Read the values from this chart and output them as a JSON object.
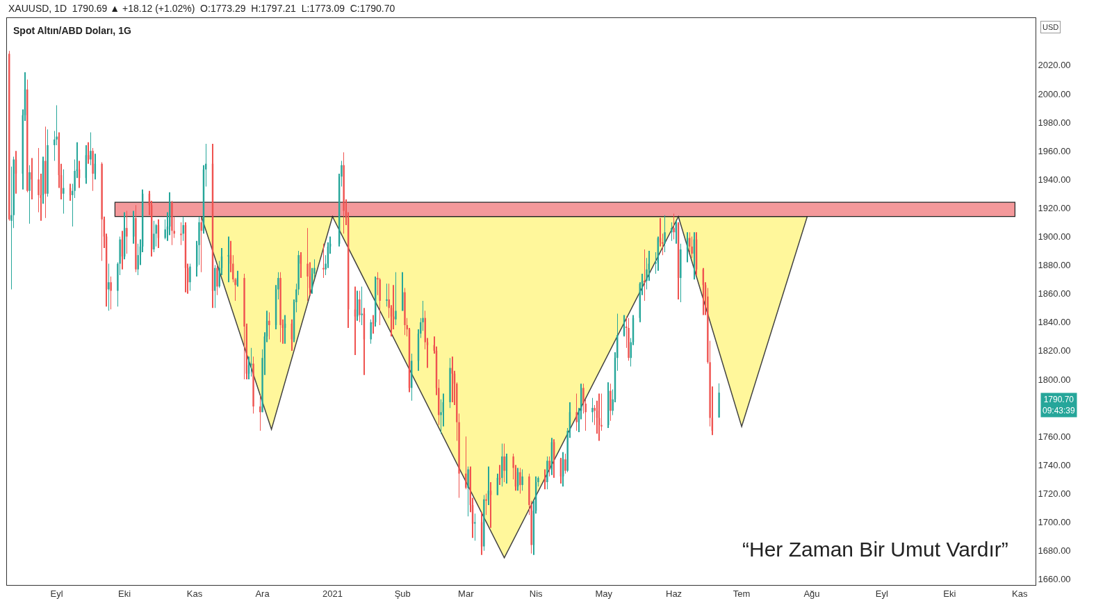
{
  "chart_data": {
    "type": "candlestick",
    "title": "Spot Altın/ABD Doları, 1G",
    "subtitle": "XAUUSD, 1D  1790.69 ▲ +18.12 (+1.02%)  O:1773.29  H:1797.21  L:1773.09  C:1790.70",
    "annotations": [
      "“Her Zaman Bir Umut Vardır”",
      "USD",
      "1790.70\n09:43:39"
    ],
    "xlim": [
      "2020-08-10",
      "2021-11-08"
    ],
    "xticks": [
      {
        "value": "2020-09-01",
        "label": "Eyl"
      },
      {
        "value": "2020-10-01",
        "label": "Eki"
      },
      {
        "value": "2020-11-01",
        "label": "Kas"
      },
      {
        "value": "2020-12-01",
        "label": "Ara"
      },
      {
        "value": "2021-01-01",
        "label": "2021"
      },
      {
        "value": "2021-02-01",
        "label": "Şub"
      },
      {
        "value": "2021-03-01",
        "label": "Mar"
      },
      {
        "value": "2021-04-01",
        "label": "Nis"
      },
      {
        "value": "2021-05-01",
        "label": "May"
      },
      {
        "value": "2021-06-01",
        "label": "Haz"
      },
      {
        "value": "2021-07-01",
        "label": "Tem"
      },
      {
        "value": "2021-08-01",
        "label": "Ağu"
      },
      {
        "value": "2021-09-01",
        "label": "Eyl"
      },
      {
        "value": "2021-10-01",
        "label": "Eki"
      },
      {
        "value": "2021-11-01",
        "label": "Kas"
      }
    ],
    "ylim": [
      1656,
      2053
    ],
    "yticks": [
      {
        "value": 1660,
        "label": "1660.00"
      },
      {
        "value": 1680,
        "label": "1680.00"
      },
      {
        "value": 1700,
        "label": "1700.00"
      },
      {
        "value": 1720,
        "label": "1720.00"
      },
      {
        "value": 1740,
        "label": "1740.00"
      },
      {
        "value": 1760,
        "label": "1760.00"
      },
      {
        "value": 1800,
        "label": "1800.00"
      },
      {
        "value": 1820,
        "label": "1820.00"
      },
      {
        "value": 1840,
        "label": "1840.00"
      },
      {
        "value": 1860,
        "label": "1860.00"
      },
      {
        "value": 1880,
        "label": "1880.00"
      },
      {
        "value": 1900,
        "label": "1900.00"
      },
      {
        "value": 1920,
        "label": "1920.00"
      },
      {
        "value": 1940,
        "label": "1940.00"
      },
      {
        "value": 1960,
        "label": "1960.00"
      },
      {
        "value": 1980,
        "label": "1980.00"
      },
      {
        "value": 2000,
        "label": "2000.00"
      },
      {
        "value": 2020,
        "label": "2020.00"
      }
    ],
    "bands": [
      {
        "axis": "y",
        "from": 1914,
        "to": 1924,
        "color": "#f4999b"
      }
    ],
    "series": [
      {
        "type": "area",
        "color": "#fff68a",
        "x": [
          "2020-11-04",
          "2020-12-05",
          "2021-01-01",
          "2021-03-18",
          "2021-06-03",
          "2021-07-01",
          "2021-07-30"
        ],
        "values": [
          1914,
          1765,
          1914,
          1675,
          1914,
          1767,
          1914
        ]
      },
      {
        "colors": [
          "#ef5350",
          "#26a69a",
          "#26a69a",
          "#ef5350",
          "#26a69a",
          "#26a69a",
          "#ef5350",
          "#26a69a",
          "#ef5350",
          "#ef5350",
          "#ef5350",
          "#26a69a",
          "#ef5350",
          "#26a69a",
          "#26a69a",
          "#26a69a",
          "#ef5350",
          "#ef5350",
          "#26a69a",
          "#ef5350",
          "#26a69a",
          "#26a69a",
          "#26a69a",
          "#ef5350",
          "#26a69a",
          "#ef5350",
          "#26a69a",
          "#ef5350",
          "#26a69a",
          "#ef5350",
          "#ef5350",
          "#ef5350",
          "#26a69a",
          "#ef5350",
          "#26a69a",
          "#26a69a",
          "#ef5350",
          "#26a69a",
          "#ef5350",
          "#26a69a",
          "#ef5350",
          "#26a69a",
          "#26a69a",
          "#26a69a",
          "#ef5350",
          "#ef5350",
          "#26a69a",
          "#26a69a",
          "#ef5350",
          "#26a69a",
          "#26a69a",
          "#26a69a",
          "#ef5350",
          "#ef5350",
          "#ef5350",
          "#26a69a",
          "#ef5350",
          "#ef5350",
          "#26a69a",
          "#26a69a",
          "#26a69a",
          "#ef5350",
          "#26a69a",
          "#26a69a",
          "#ef5350",
          "#26a69a",
          "#ef5350",
          "#26a69a",
          "#26a69a",
          "#26a69a",
          "#ef5350",
          "#ef5350",
          "#ef5350",
          "#26a69a",
          "#ef5350",
          "#ef5350",
          "#26a69a",
          "#26a69a",
          "#ef5350",
          "#ef5350",
          "#26a69a",
          "#26a69a",
          "#26a69a",
          "#ef5350",
          "#26a69a",
          "#26a69a",
          "#ef5350",
          "#ef5350",
          "#26a69a",
          "#ef5350",
          "#26a69a",
          "#26a69a",
          "#26a69a",
          "#ef5350",
          "#ef5350",
          "#ef5350",
          "#26a69a",
          "#26a69a",
          "#ef5350",
          "#26a69a",
          "#26a69a",
          "#26a69a",
          "#26a69a",
          "#26a69a",
          "#ef5350",
          "#ef5350",
          "#ef5350",
          "#ef5350",
          "#26a69a",
          "#ef5350",
          "#26a69a",
          "#ef5350",
          "#26a69a",
          "#ef5350",
          "#26a69a",
          "#ef5350",
          "#ef5350",
          "#26a69a",
          "#ef5350",
          "#ef5350",
          "#ef5350",
          "#26a69a",
          "#26a69a",
          "#ef5350",
          "#ef5350",
          "#ef5350",
          "#26a69a",
          "#26a69a",
          "#26a69a",
          "#26a69a",
          "#ef5350",
          "#ef5350",
          "#ef5350",
          "#ef5350",
          "#ef5350",
          "#26a69a",
          "#26a69a",
          "#26a69a",
          "#ef5350",
          "#ef5350",
          "#ef5350",
          "#ef5350",
          "#ef5350",
          "#26a69a",
          "#ef5350",
          "#ef5350",
          "#26a69a",
          "#ef5350",
          "#26a69a",
          "#ef5350",
          "#26a69a",
          "#ef5350",
          "#26a69a",
          "#ef5350",
          "#26a69a",
          "#ef5350",
          "#26a69a",
          "#ef5350",
          "#ef5350",
          "#26a69a",
          "#ef5350",
          "#26a69a",
          "#ef5350",
          "#ef5350",
          "#26a69a",
          "#26a69a",
          "#26a69a",
          "#ef5350",
          "#26a69a",
          "#ef5350",
          "#26a69a",
          "#ef5350",
          "#ef5350",
          "#26a69a",
          "#ef5350",
          "#26a69a",
          "#26a69a",
          "#ef5350",
          "#26a69a",
          "#26a69a",
          "#ef5350",
          "#ef5350",
          "#26a69a",
          "#ef5350",
          "#ef5350",
          "#ef5350",
          "#ef5350",
          "#26a69a",
          "#ef5350",
          "#26a69a",
          "#26a69a",
          "#26a69a",
          "#26a69a",
          "#ef5350",
          "#ef5350",
          "#26a69a",
          "#26a69a",
          "#26a69a",
          "#26a69a",
          "#ef5350",
          "#26a69a",
          "#26a69a",
          "#26a69a",
          "#26a69a",
          "#ef5350",
          "#ef5350",
          "#26a69a",
          "#26a69a",
          "#ef5350",
          "#26a69a",
          "#ef5350",
          "#26a69a",
          "#26a69a",
          "#ef5350",
          "#ef5350",
          "#26a69a",
          "#ef5350",
          "#ef5350",
          "#ef5350",
          "#ef5350",
          "#ef5350",
          "#ef5350",
          "#26a69a"
        ],
        "x": [
          "2020-08-11",
          "2020-08-12",
          "2020-08-13",
          "2020-08-14",
          "2020-08-17",
          "2020-08-18",
          "2020-08-19",
          "2020-08-20",
          "2020-08-21",
          "2020-08-24",
          "2020-08-25",
          "2020-08-26",
          "2020-08-27",
          "2020-08-28",
          "2020-08-31",
          "2020-09-01",
          "2020-09-02",
          "2020-09-03",
          "2020-09-04",
          "2020-09-07",
          "2020-09-08",
          "2020-09-09",
          "2020-09-10",
          "2020-09-11",
          "2020-09-14",
          "2020-09-15",
          "2020-09-16",
          "2020-09-17",
          "2020-09-18",
          "2020-09-21",
          "2020-09-22",
          "2020-09-23",
          "2020-09-24",
          "2020-09-25",
          "2020-09-28",
          "2020-09-29",
          "2020-09-30",
          "2020-10-01",
          "2020-10-02",
          "2020-10-05",
          "2020-10-06",
          "2020-10-07",
          "2020-10-08",
          "2020-10-09",
          "2020-10-12",
          "2020-10-13",
          "2020-10-14",
          "2020-10-15",
          "2020-10-16",
          "2020-10-19",
          "2020-10-20",
          "2020-10-21",
          "2020-10-22",
          "2020-10-23",
          "2020-10-26",
          "2020-10-27",
          "2020-10-28",
          "2020-10-29",
          "2020-10-30",
          "2020-11-02",
          "2020-11-03",
          "2020-11-04",
          "2020-11-05",
          "2020-11-06",
          "2020-11-09",
          "2020-11-10",
          "2020-11-11",
          "2020-11-12",
          "2020-11-13",
          "2020-11-16",
          "2020-11-17",
          "2020-11-18",
          "2020-11-19",
          "2020-11-20",
          "2020-11-23",
          "2020-11-24",
          "2020-11-25",
          "2020-11-26",
          "2020-11-27",
          "2020-11-30",
          "2020-12-01",
          "2020-12-02",
          "2020-12-03",
          "2020-12-04",
          "2020-12-07",
          "2020-12-08",
          "2020-12-09",
          "2020-12-10",
          "2020-12-11",
          "2020-12-14",
          "2020-12-15",
          "2020-12-16",
          "2020-12-17",
          "2020-12-18",
          "2020-12-21",
          "2020-12-22",
          "2020-12-23",
          "2020-12-24",
          "2020-12-28",
          "2020-12-29",
          "2020-12-30",
          "2020-12-31",
          "2021-01-04",
          "2021-01-05",
          "2021-01-06",
          "2021-01-07",
          "2021-01-08",
          "2021-01-11",
          "2021-01-12",
          "2021-01-13",
          "2021-01-14",
          "2021-01-15",
          "2021-01-18",
          "2021-01-19",
          "2021-01-20",
          "2021-01-21",
          "2021-01-22",
          "2021-01-25",
          "2021-01-26",
          "2021-01-27",
          "2021-01-28",
          "2021-01-29",
          "2021-02-01",
          "2021-02-02",
          "2021-02-03",
          "2021-02-04",
          "2021-02-05",
          "2021-02-08",
          "2021-02-09",
          "2021-02-10",
          "2021-02-11",
          "2021-02-12",
          "2021-02-15",
          "2021-02-16",
          "2021-02-17",
          "2021-02-18",
          "2021-02-19",
          "2021-02-22",
          "2021-02-23",
          "2021-02-24",
          "2021-02-25",
          "2021-02-26",
          "2021-03-01",
          "2021-03-02",
          "2021-03-03",
          "2021-03-04",
          "2021-03-05",
          "2021-03-08",
          "2021-03-09",
          "2021-03-10",
          "2021-03-11",
          "2021-03-12",
          "2021-03-15",
          "2021-03-16",
          "2021-03-17",
          "2021-03-18",
          "2021-03-19",
          "2021-03-22",
          "2021-03-23",
          "2021-03-24",
          "2021-03-25",
          "2021-03-26",
          "2021-03-29",
          "2021-03-30",
          "2021-03-31",
          "2021-04-01",
          "2021-04-02",
          "2021-04-05",
          "2021-04-06",
          "2021-04-07",
          "2021-04-08",
          "2021-04-09",
          "2021-04-12",
          "2021-04-13",
          "2021-04-14",
          "2021-04-15",
          "2021-04-16",
          "2021-04-19",
          "2021-04-20",
          "2021-04-21",
          "2021-04-22",
          "2021-04-23",
          "2021-04-26",
          "2021-04-27",
          "2021-04-28",
          "2021-04-29",
          "2021-04-30",
          "2021-05-03",
          "2021-05-04",
          "2021-05-05",
          "2021-05-06",
          "2021-05-07",
          "2021-05-10",
          "2021-05-11",
          "2021-05-12",
          "2021-05-13",
          "2021-05-14",
          "2021-05-17",
          "2021-05-18",
          "2021-05-19",
          "2021-05-20",
          "2021-05-21",
          "2021-05-24",
          "2021-05-25",
          "2021-05-26",
          "2021-05-27",
          "2021-05-28",
          "2021-05-31",
          "2021-06-01",
          "2021-06-02",
          "2021-06-03",
          "2021-06-04",
          "2021-06-07",
          "2021-06-08",
          "2021-06-09",
          "2021-06-10",
          "2021-06-11",
          "2021-06-14",
          "2021-06-15",
          "2021-06-16",
          "2021-06-17",
          "2021-06-18",
          "2021-06-21"
        ],
        "ohlc": [
          [
            2028,
            2030,
            1911,
            1912
          ],
          [
            1911,
            1949,
            1863,
            1915
          ],
          [
            1915,
            1956,
            1906,
            1954
          ],
          [
            1954,
            1960,
            1930,
            1944
          ],
          [
            1944,
            1989,
            1933,
            1985
          ],
          [
            1985,
            2015,
            1981,
            2003
          ],
          [
            2003,
            2010,
            1931,
            1932
          ],
          [
            1932,
            1950,
            1909,
            1945
          ],
          [
            1945,
            1955,
            1926,
            1940
          ],
          [
            1940,
            1962,
            1917,
            1929
          ],
          [
            1929,
            1944,
            1911,
            1927
          ],
          [
            1929,
            1956,
            1923,
            1953
          ],
          [
            1953,
            1977,
            1913,
            1930
          ],
          [
            1930,
            1975,
            1928,
            1964
          ],
          [
            1964,
            1974,
            1953,
            1968
          ],
          [
            1968,
            1992,
            1964,
            1970
          ],
          [
            1970,
            1973,
            1934,
            1943
          ],
          [
            1943,
            1951,
            1926,
            1930
          ],
          [
            1930,
            1947,
            1916,
            1934
          ],
          [
            1934,
            1937,
            1925,
            1929
          ],
          [
            1929,
            1937,
            1907,
            1932
          ],
          [
            1932,
            1954,
            1927,
            1946
          ],
          [
            1946,
            1966,
            1941,
            1947
          ],
          [
            1947,
            1953,
            1934,
            1941
          ],
          [
            1941,
            1964,
            1937,
            1957
          ],
          [
            1957,
            1966,
            1951,
            1954
          ],
          [
            1954,
            1973,
            1950,
            1960
          ],
          [
            1960,
            1962,
            1932,
            1944
          ],
          [
            1944,
            1958,
            1940,
            1951
          ],
          [
            1951,
            1952,
            1883,
            1912
          ],
          [
            1912,
            1914,
            1892,
            1900
          ],
          [
            1900,
            1902,
            1851,
            1863
          ],
          [
            1863,
            1881,
            1848,
            1868
          ],
          [
            1868,
            1872,
            1849,
            1862
          ],
          [
            1862,
            1882,
            1851,
            1881
          ],
          [
            1881,
            1900,
            1873,
            1898
          ],
          [
            1898,
            1904,
            1877,
            1886
          ],
          [
            1886,
            1917,
            1884,
            1906
          ],
          [
            1906,
            1918,
            1888,
            1900
          ],
          [
            1900,
            1918,
            1895,
            1913
          ],
          [
            1913,
            1922,
            1875,
            1877
          ],
          [
            1877,
            1895,
            1873,
            1887
          ],
          [
            1887,
            1898,
            1880,
            1893
          ],
          [
            1893,
            1933,
            1889,
            1930
          ],
          [
            1930,
            1932,
            1915,
            1922
          ],
          [
            1922,
            1925,
            1886,
            1891
          ],
          [
            1891,
            1911,
            1889,
            1902
          ],
          [
            1902,
            1909,
            1893,
            1908
          ],
          [
            1908,
            1912,
            1892,
            1899
          ],
          [
            1899,
            1912,
            1898,
            1905
          ],
          [
            1905,
            1917,
            1897,
            1907
          ],
          [
            1907,
            1931,
            1901,
            1924
          ],
          [
            1924,
            1925,
            1894,
            1904
          ],
          [
            1904,
            1914,
            1899,
            1902
          ],
          [
            1902,
            1910,
            1894,
            1901
          ],
          [
            1902,
            1914,
            1897,
            1908
          ],
          [
            1908,
            1910,
            1861,
            1878
          ],
          [
            1878,
            1881,
            1860,
            1868
          ],
          [
            1868,
            1881,
            1862,
            1879
          ],
          [
            1879,
            1897,
            1872,
            1894
          ],
          [
            1894,
            1914,
            1880,
            1910
          ],
          [
            1910,
            1913,
            1875,
            1904
          ],
          [
            1904,
            1950,
            1902,
            1947
          ],
          [
            1947,
            1965,
            1935,
            1951
          ],
          [
            1951,
            1965,
            1850,
            1862
          ],
          [
            1862,
            1880,
            1850,
            1878
          ],
          [
            1878,
            1880,
            1859,
            1865
          ],
          [
            1865,
            1883,
            1864,
            1878
          ],
          [
            1878,
            1892,
            1873,
            1886
          ],
          [
            1886,
            1900,
            1868,
            1887
          ],
          [
            1887,
            1897,
            1875,
            1881
          ],
          [
            1881,
            1887,
            1868,
            1870
          ],
          [
            1870,
            1871,
            1855,
            1866
          ],
          [
            1866,
            1876,
            1865,
            1871
          ],
          [
            1871,
            1874,
            1800,
            1837
          ],
          [
            1837,
            1839,
            1800,
            1804
          ],
          [
            1804,
            1816,
            1800,
            1810
          ],
          [
            1810,
            1822,
            1802,
            1811
          ],
          [
            1811,
            1816,
            1776,
            1781
          ],
          [
            1781,
            1789,
            1764,
            1777
          ],
          [
            1777,
            1821,
            1777,
            1815
          ],
          [
            1815,
            1833,
            1803,
            1830
          ],
          [
            1830,
            1848,
            1826,
            1841
          ],
          [
            1841,
            1847,
            1828,
            1838
          ],
          [
            1838,
            1866,
            1835,
            1863
          ],
          [
            1863,
            1875,
            1856,
            1871
          ],
          [
            1871,
            1875,
            1826,
            1838
          ],
          [
            1838,
            1842,
            1825,
            1836
          ],
          [
            1836,
            1845,
            1825,
            1839
          ],
          [
            1839,
            1842,
            1820,
            1828
          ],
          [
            1828,
            1856,
            1826,
            1854
          ],
          [
            1854,
            1867,
            1847,
            1863
          ],
          [
            1863,
            1890,
            1859,
            1887
          ],
          [
            1887,
            1889,
            1871,
            1881
          ],
          [
            1881,
            1906,
            1855,
            1872
          ],
          [
            1872,
            1882,
            1859,
            1864
          ],
          [
            1864,
            1878,
            1860,
            1874
          ],
          [
            1874,
            1884,
            1871,
            1878
          ],
          [
            1878,
            1895,
            1871,
            1877
          ],
          [
            1877,
            1887,
            1873,
            1881
          ],
          [
            1881,
            1896,
            1878,
            1893
          ],
          [
            1893,
            1900,
            1888,
            1895
          ],
          [
            1895,
            1944,
            1893,
            1942
          ],
          [
            1942,
            1953,
            1935,
            1950
          ],
          [
            1950,
            1959,
            1902,
            1918
          ],
          [
            1918,
            1926,
            1908,
            1913
          ],
          [
            1913,
            1917,
            1836,
            1849
          ],
          [
            1849,
            1865,
            1817,
            1844
          ],
          [
            1844,
            1862,
            1841,
            1856
          ],
          [
            1856,
            1862,
            1840,
            1845
          ],
          [
            1845,
            1865,
            1838,
            1846
          ],
          [
            1846,
            1850,
            1803,
            1828
          ],
          [
            1828,
            1842,
            1825,
            1840
          ],
          [
            1840,
            1845,
            1832,
            1839
          ],
          [
            1840,
            1872,
            1837,
            1871
          ],
          [
            1871,
            1875,
            1859,
            1870
          ],
          [
            1870,
            1871,
            1838,
            1855
          ],
          [
            1855,
            1867,
            1851,
            1856
          ],
          [
            1856,
            1867,
            1843,
            1850
          ],
          [
            1850,
            1852,
            1830,
            1844
          ],
          [
            1844,
            1866,
            1835,
            1842
          ],
          [
            1842,
            1875,
            1838,
            1848
          ],
          [
            1848,
            1875,
            1848,
            1861
          ],
          [
            1861,
            1864,
            1831,
            1838
          ],
          [
            1838,
            1843,
            1830,
            1835
          ],
          [
            1835,
            1836,
            1791,
            1794
          ],
          [
            1794,
            1818,
            1785,
            1813
          ],
          [
            1813,
            1835,
            1806,
            1832
          ],
          [
            1832,
            1843,
            1829,
            1840
          ],
          [
            1840,
            1855,
            1834,
            1843
          ],
          [
            1843,
            1848,
            1821,
            1826
          ],
          [
            1826,
            1829,
            1808,
            1824
          ],
          [
            1824,
            1830,
            1818,
            1820
          ],
          [
            1820,
            1823,
            1789,
            1794
          ],
          [
            1794,
            1800,
            1768,
            1775
          ],
          [
            1775,
            1786,
            1762,
            1777
          ],
          [
            1777,
            1790,
            1767,
            1784
          ],
          [
            1784,
            1815,
            1780,
            1808
          ],
          [
            1808,
            1816,
            1784,
            1804
          ],
          [
            1804,
            1806,
            1782,
            1797
          ],
          [
            1797,
            1798,
            1757,
            1770
          ],
          [
            1770,
            1776,
            1717,
            1734
          ],
          [
            1734,
            1760,
            1723,
            1724
          ],
          [
            1724,
            1739,
            1704,
            1737
          ],
          [
            1737,
            1739,
            1707,
            1712
          ],
          [
            1712,
            1717,
            1689,
            1699
          ],
          [
            1699,
            1706,
            1687,
            1700
          ],
          [
            1700,
            1707,
            1677,
            1683
          ],
          [
            1683,
            1719,
            1680,
            1716
          ],
          [
            1716,
            1720,
            1705,
            1715
          ],
          [
            1716,
            1739,
            1712,
            1722
          ],
          [
            1722,
            1728,
            1696,
            1719
          ],
          [
            1719,
            1734,
            1719,
            1731
          ],
          [
            1731,
            1740,
            1726,
            1730
          ],
          [
            1731,
            1755,
            1725,
            1746
          ],
          [
            1746,
            1755,
            1728,
            1736
          ],
          [
            1736,
            1748,
            1727,
            1746
          ],
          [
            1746,
            1748,
            1730,
            1738
          ],
          [
            1738,
            1740,
            1722,
            1725
          ],
          [
            1725,
            1738,
            1722,
            1735
          ],
          [
            1735,
            1738,
            1720,
            1726
          ],
          [
            1726,
            1737,
            1722,
            1732
          ],
          [
            1732,
            1734,
            1705,
            1712
          ],
          [
            1712,
            1715,
            1678,
            1684
          ],
          [
            1684,
            1715,
            1677,
            1708
          ],
          [
            1708,
            1732,
            1706,
            1728
          ],
          [
            1728,
            1732,
            1725,
            1731
          ],
          [
            1731,
            1737,
            1723,
            1728
          ],
          [
            1728,
            1746,
            1723,
            1743
          ],
          [
            1743,
            1746,
            1732,
            1737
          ],
          [
            1737,
            1759,
            1733,
            1756
          ],
          [
            1756,
            1758,
            1731,
            1744
          ],
          [
            1744,
            1745,
            1727,
            1732
          ],
          [
            1732,
            1749,
            1725,
            1744
          ],
          [
            1744,
            1748,
            1734,
            1736
          ],
          [
            1736,
            1766,
            1735,
            1764
          ],
          [
            1764,
            1784,
            1759,
            1777
          ],
          [
            1777,
            1790,
            1764,
            1770
          ],
          [
            1770,
            1780,
            1763,
            1778
          ],
          [
            1778,
            1797,
            1772,
            1794
          ],
          [
            1794,
            1797,
            1776,
            1783
          ],
          [
            1783,
            1786,
            1764,
            1777
          ],
          [
            1777,
            1787,
            1770,
            1780
          ],
          [
            1780,
            1782,
            1768,
            1778
          ],
          [
            1778,
            1785,
            1762,
            1773
          ],
          [
            1773,
            1790,
            1757,
            1768
          ],
          [
            1768,
            1790,
            1764,
            1767
          ],
          [
            1768,
            1798,
            1766,
            1792
          ],
          [
            1792,
            1797,
            1771,
            1778
          ],
          [
            1778,
            1793,
            1775,
            1786
          ],
          [
            1786,
            1819,
            1784,
            1815
          ],
          [
            1815,
            1846,
            1806,
            1831
          ],
          [
            1831,
            1845,
            1830,
            1837
          ],
          [
            1837,
            1844,
            1822,
            1836
          ],
          [
            1836,
            1843,
            1813,
            1815
          ],
          [
            1815,
            1829,
            1809,
            1826
          ],
          [
            1826,
            1845,
            1824,
            1843
          ],
          [
            1843,
            1868,
            1840,
            1867
          ],
          [
            1867,
            1874,
            1859,
            1869
          ],
          [
            1869,
            1891,
            1855,
            1868
          ],
          [
            1869,
            1885,
            1863,
            1877
          ],
          [
            1877,
            1890,
            1869,
            1881
          ],
          [
            1881,
            1889,
            1874,
            1882
          ],
          [
            1882,
            1900,
            1876,
            1899
          ],
          [
            1899,
            1913,
            1893,
            1896
          ],
          [
            1896,
            1902,
            1887,
            1895
          ],
          [
            1895,
            1915,
            1889,
            1903
          ],
          [
            1903,
            1910,
            1897,
            1906
          ],
          [
            1906,
            1916,
            1898,
            1903
          ],
          [
            1903,
            1911,
            1895,
            1909
          ],
          [
            1909,
            1910,
            1856,
            1871
          ],
          [
            1871,
            1895,
            1854,
            1891
          ],
          [
            1891,
            1903,
            1882,
            1899
          ],
          [
            1899,
            1903,
            1889,
            1893
          ],
          [
            1893,
            1900,
            1885,
            1888
          ],
          [
            1888,
            1903,
            1870,
            1898
          ],
          [
            1898,
            1903,
            1873,
            1877
          ],
          [
            1877,
            1878,
            1845,
            1866
          ],
          [
            1866,
            1868,
            1845,
            1858
          ],
          [
            1858,
            1864,
            1811,
            1812
          ],
          [
            1812,
            1827,
            1767,
            1773
          ],
          [
            1773,
            1795,
            1761,
            1764
          ],
          [
            1773.29,
            1797.21,
            1773.09,
            1790.7
          ]
        ]
      }
    ],
    "grid": false
  }
}
